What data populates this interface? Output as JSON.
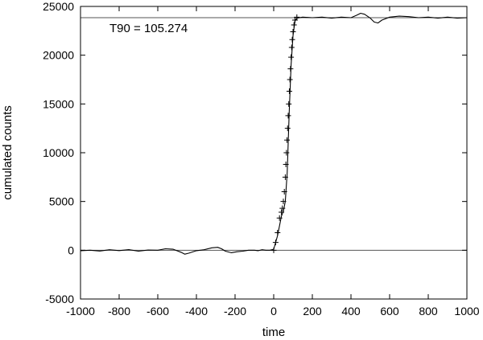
{
  "chart_data": {
    "type": "line",
    "title": "",
    "xlabel": "time",
    "ylabel": "cumulated counts",
    "xlim": [
      -1000,
      1000
    ],
    "ylim": [
      -5000,
      25000
    ],
    "x_ticks": [
      -1000,
      -800,
      -600,
      -400,
      -200,
      0,
      200,
      400,
      600,
      800,
      1000
    ],
    "y_ticks": [
      -5000,
      0,
      5000,
      10000,
      15000,
      20000,
      25000
    ],
    "x_tick_labels": [
      "-1000",
      "-800",
      "-600",
      "-400",
      "-200",
      "0",
      "200",
      "400",
      "600",
      "800",
      "1000"
    ],
    "y_tick_labels": [
      "-5000",
      "0",
      "5000",
      "10000",
      "15000",
      "20000",
      "25000"
    ],
    "grid": false,
    "annotation": "T90 = 105.274",
    "reference_lines": [
      {
        "orientation": "horizontal",
        "y": 0
      },
      {
        "orientation": "horizontal",
        "y": 23850
      }
    ],
    "series": [
      {
        "style": "line",
        "x": [
          -1000,
          -950,
          -900,
          -850,
          -800,
          -750,
          -700,
          -650,
          -600,
          -560,
          -520,
          -480,
          -460,
          -440,
          -400,
          -360,
          -320,
          -290,
          -270,
          -250,
          -220,
          -190,
          -160,
          -130,
          -100,
          -80,
          -60,
          -40,
          -20,
          0,
          10,
          20,
          30,
          40,
          50,
          60,
          70,
          80,
          90,
          100,
          110,
          120,
          150,
          200,
          250,
          300,
          350,
          400,
          430,
          450,
          470,
          500,
          520,
          540,
          560,
          600,
          650,
          700,
          750,
          800,
          850,
          900,
          950,
          1000
        ],
        "y": [
          -50,
          0,
          -80,
          50,
          -40,
          60,
          -100,
          20,
          0,
          150,
          100,
          -200,
          -400,
          -300,
          -50,
          50,
          250,
          300,
          150,
          -100,
          -250,
          -150,
          -100,
          0,
          0,
          -50,
          50,
          0,
          0,
          100,
          800,
          1500,
          2500,
          3500,
          4000,
          5000,
          8000,
          14000,
          19000,
          22000,
          23500,
          23800,
          23900,
          23850,
          23900,
          23800,
          23900,
          23850,
          24100,
          24300,
          24200,
          23800,
          23400,
          23300,
          23600,
          23900,
          24000,
          23950,
          23850,
          23900,
          23800,
          23900,
          23800,
          23850
        ]
      },
      {
        "style": "markers",
        "marker": "+",
        "x": [
          0,
          10,
          20,
          30,
          40,
          45,
          50,
          55,
          60,
          63,
          66,
          69,
          72,
          75,
          78,
          81,
          84,
          87,
          90,
          93,
          96,
          100,
          105,
          110,
          120
        ],
        "y": [
          0,
          800,
          1800,
          3300,
          3900,
          4300,
          5000,
          6000,
          7500,
          8800,
          10000,
          11300,
          12500,
          13800,
          15000,
          16300,
          17500,
          18600,
          19800,
          20800,
          21600,
          22400,
          23100,
          23600,
          23900
        ]
      }
    ]
  }
}
